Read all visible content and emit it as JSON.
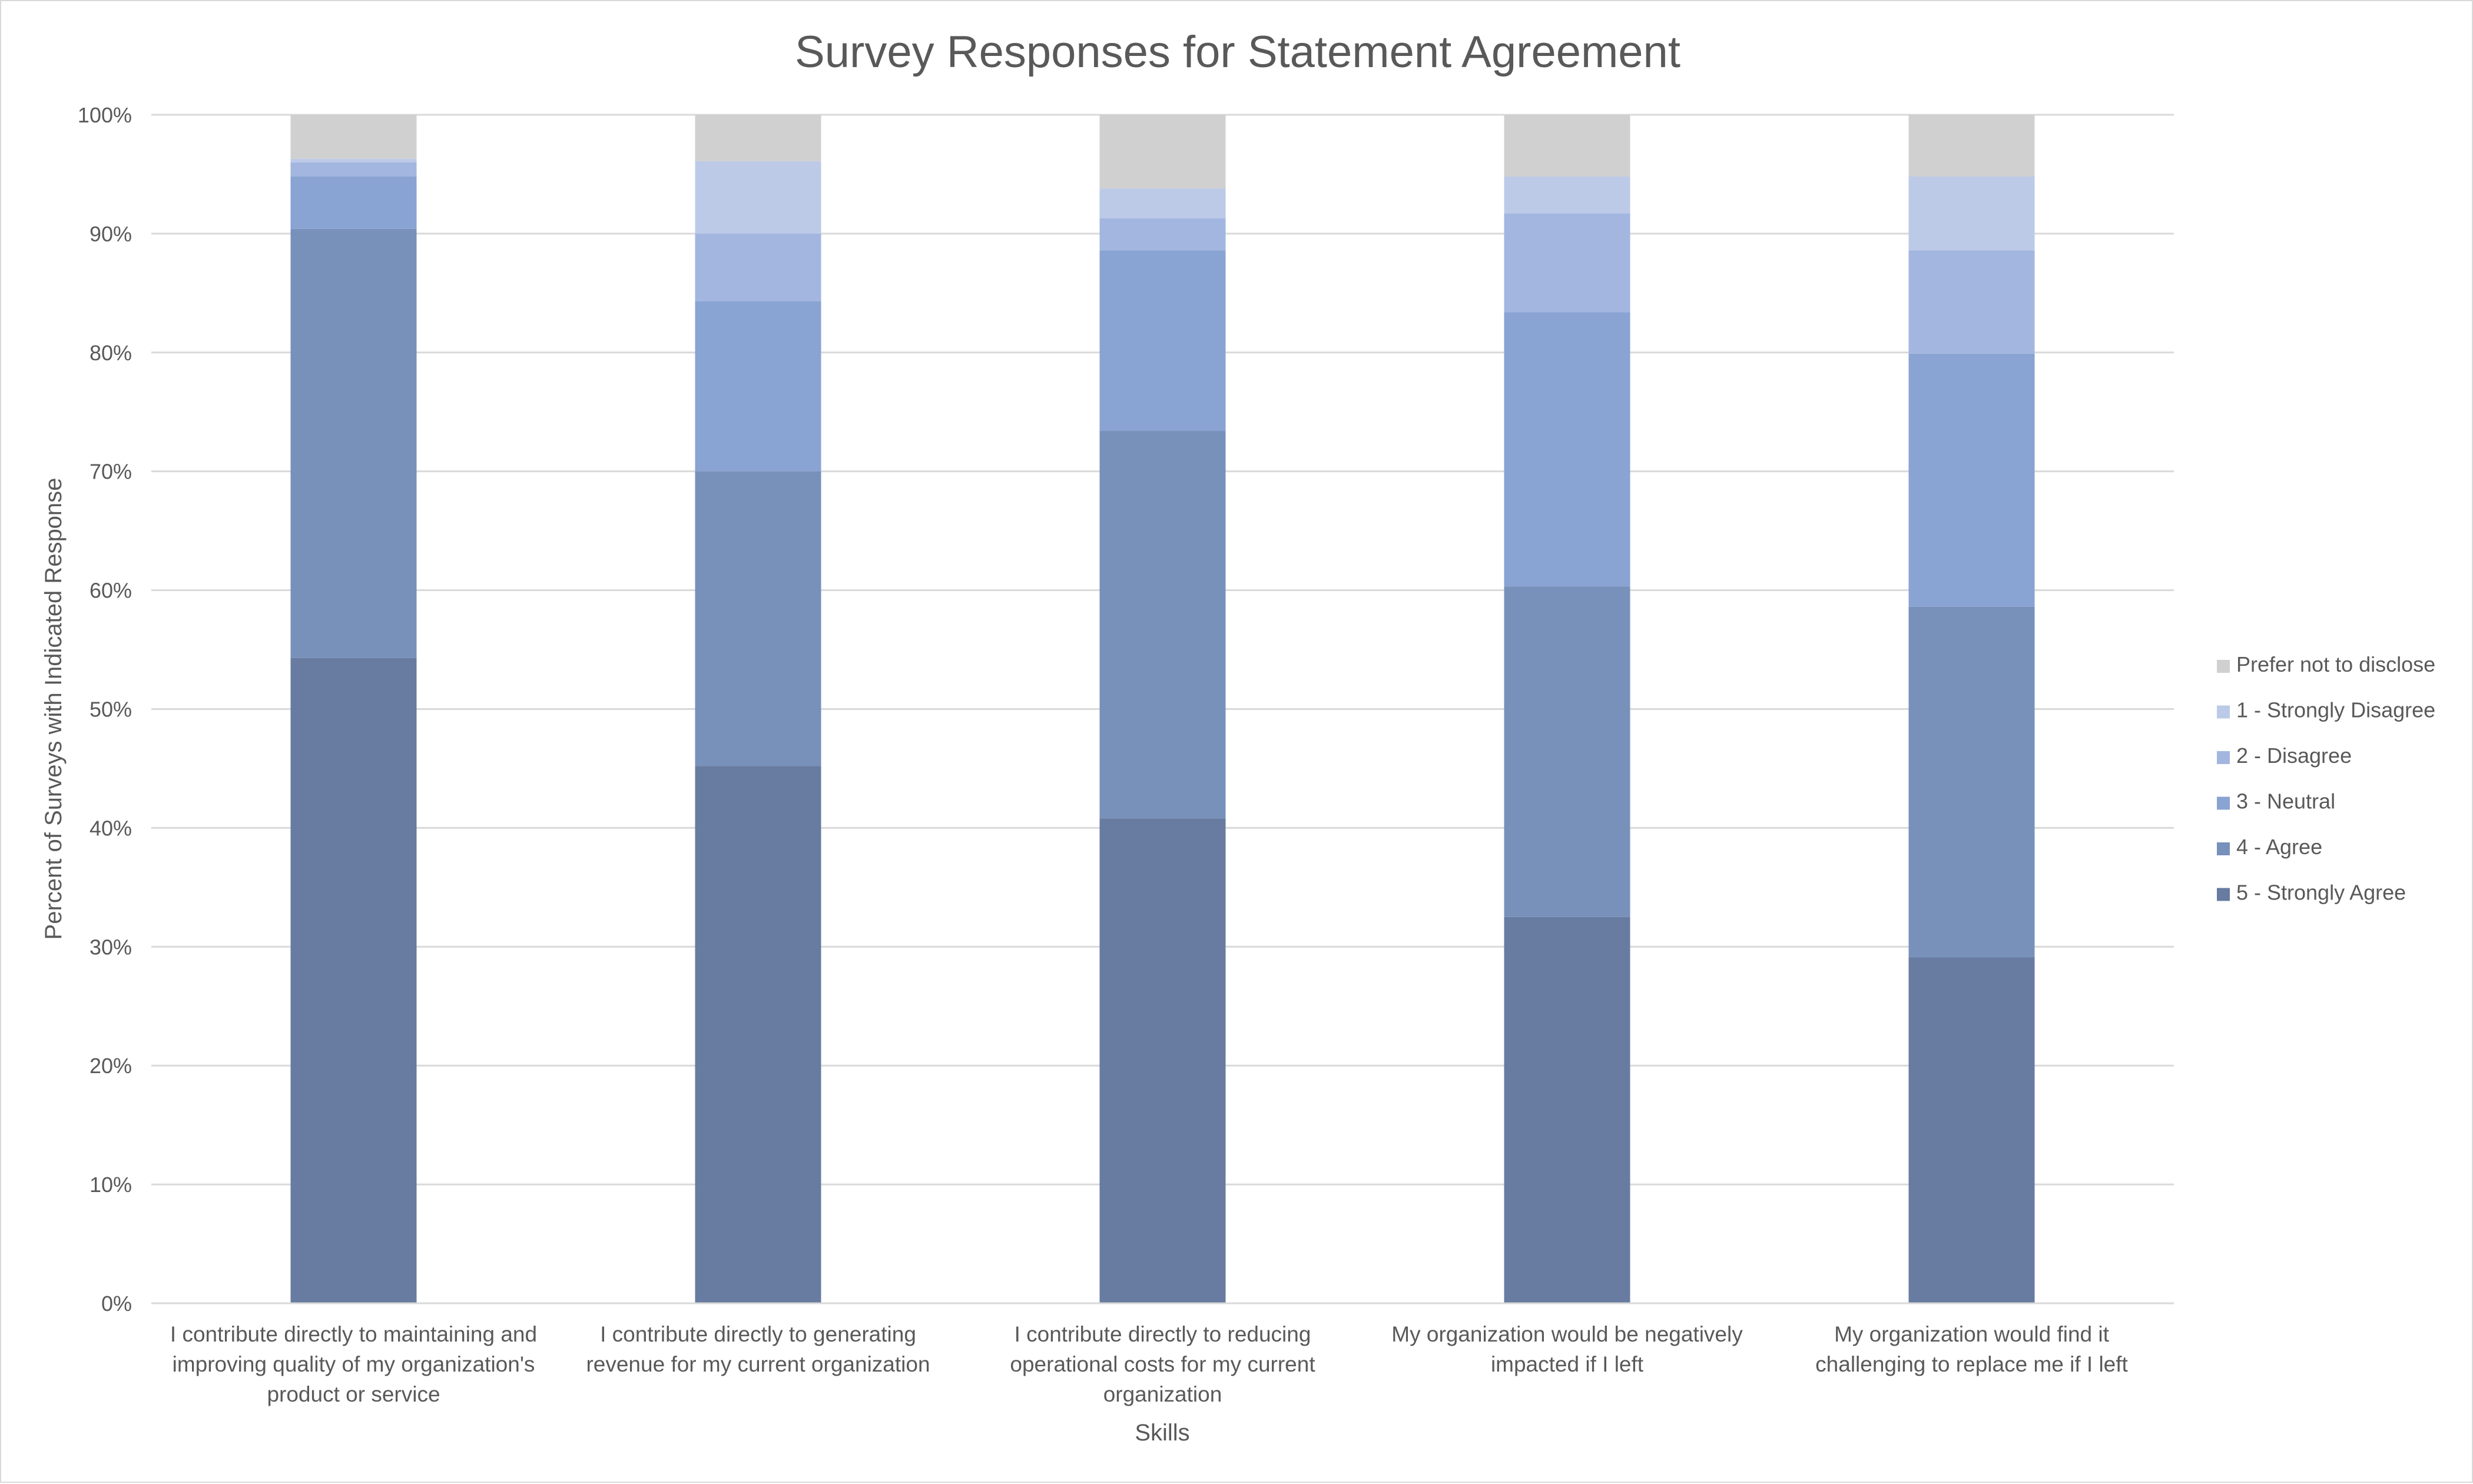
{
  "chart_data": {
    "type": "bar",
    "stacked": true,
    "title": "Survey Responses for Statement Agreement",
    "xlabel": "Skills",
    "ylabel": "Percent of Surveys with Indicated Response",
    "ylim": [
      0,
      100
    ],
    "y_ticks": [
      "0%",
      "10%",
      "20%",
      "30%",
      "40%",
      "50%",
      "60%",
      "70%",
      "80%",
      "90%",
      "100%"
    ],
    "grid": true,
    "legend_position": "right",
    "categories": [
      "I contribute directly to maintaining and improving quality of my organization's product or service",
      "I contribute directly to generating revenue for my current organization",
      "I contribute directly to reducing operational costs for my current organization",
      "My organization would be negatively impacted if I left",
      "My organization would find it challenging to replace me if I left"
    ],
    "category_label_lines": [
      [
        "I contribute directly to maintaining and",
        "improving quality of my organization's",
        "product or service"
      ],
      [
        "I contribute directly to generating",
        "revenue for my current organization"
      ],
      [
        "I contribute directly to reducing",
        "operational costs for my current",
        "organization"
      ],
      [
        "My organization would be negatively",
        "impacted if I left"
      ],
      [
        "My organization would find it",
        "challenging to replace me if I left"
      ]
    ],
    "series": [
      {
        "name": "5 - Strongly Agree",
        "color": "#687ba0",
        "values": [
          54.3,
          45.2,
          40.8,
          32.5,
          29.1
        ]
      },
      {
        "name": "4 - Agree",
        "color": "#7891ba",
        "values": [
          36.1,
          24.8,
          32.6,
          27.8,
          29.5
        ]
      },
      {
        "name": "3 - Neutral",
        "color": "#89a3d2",
        "values": [
          4.4,
          14.3,
          15.2,
          23.1,
          21.3
        ]
      },
      {
        "name": "2 - Disagree",
        "color": "#a2b6e0",
        "values": [
          1.2,
          5.7,
          2.7,
          8.3,
          8.7
        ]
      },
      {
        "name": "1 - Strongly Disagree",
        "color": "#bccae8",
        "values": [
          0.3,
          6.1,
          2.5,
          3.1,
          6.2
        ]
      },
      {
        "name": "Prefer not to disclose",
        "color": "#d0d0d0",
        "values": [
          3.7,
          3.9,
          6.2,
          5.2,
          5.2
        ]
      }
    ]
  }
}
